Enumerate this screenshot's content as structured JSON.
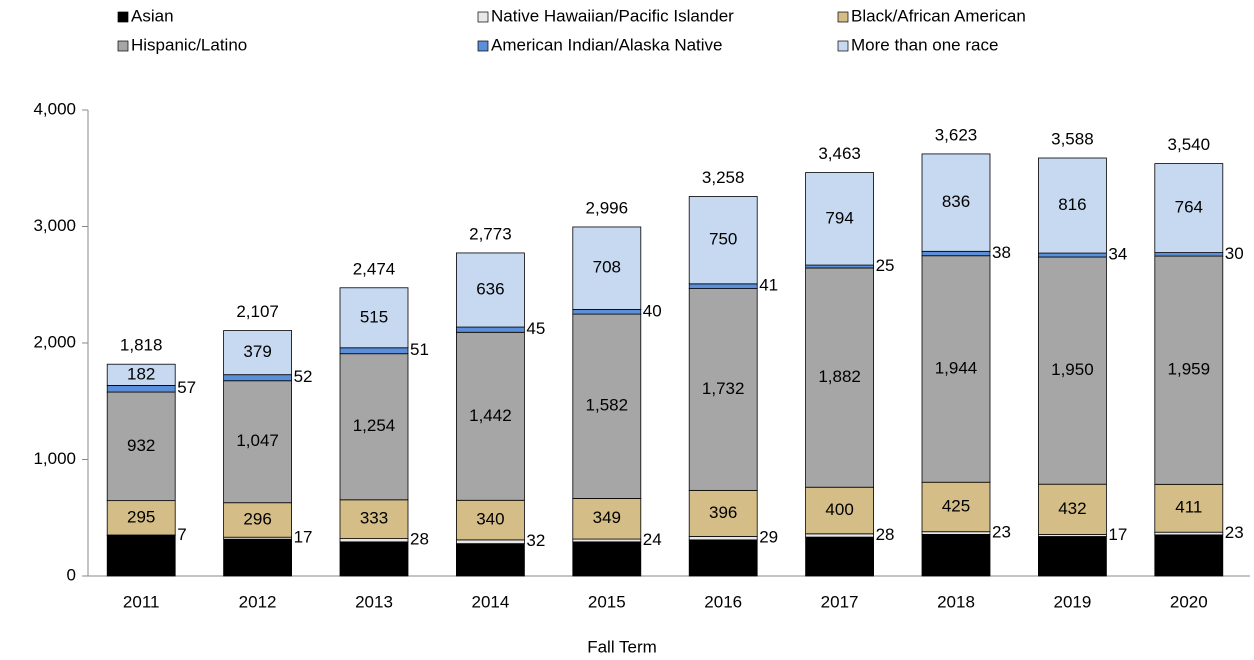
{
  "chart_data": {
    "type": "stacked_bar",
    "x_label": "Fall Term",
    "categories": [
      "2011",
      "2012",
      "2013",
      "2014",
      "2015",
      "2016",
      "2017",
      "2018",
      "2019",
      "2020"
    ],
    "series": [
      {
        "name": "Asian",
        "color": "#000000",
        "values": [
          345,
          316,
          293,
          278,
          293,
          310,
          334,
          357,
          339,
          353
        ]
      },
      {
        "name": "Native Hawaiian/Pacific Islander",
        "color": "#e8e8e8",
        "values": [
          7,
          17,
          28,
          32,
          24,
          29,
          28,
          23,
          17,
          23
        ]
      },
      {
        "name": "Black/African American",
        "color": "#d4bd86",
        "values": [
          295,
          296,
          333,
          340,
          349,
          396,
          400,
          425,
          432,
          411
        ]
      },
      {
        "name": "Hispanic/Latino",
        "color": "#a6a6a6",
        "values": [
          932,
          1047,
          1254,
          1442,
          1582,
          1732,
          1882,
          1944,
          1950,
          1959
        ],
        "value_labels": [
          "932",
          "1,047",
          "1,254",
          "1,442",
          "1,582",
          "1,732",
          "1,882",
          "1,944",
          "1,950",
          "1,959"
        ]
      },
      {
        "name": "American Indian/Alaska Native",
        "color": "#5b8fd9",
        "values": [
          57,
          52,
          51,
          45,
          40,
          41,
          25,
          38,
          34,
          30
        ]
      },
      {
        "name": "More than one race",
        "color": "#c6d9f1",
        "values": [
          182,
          379,
          515,
          636,
          708,
          750,
          794,
          836,
          816,
          764
        ]
      }
    ],
    "totals": {
      "values": [
        1818,
        2107,
        2474,
        2773,
        2996,
        3258,
        3463,
        3623,
        3588,
        3540
      ],
      "value_labels": [
        "1,818",
        "2,107",
        "2,474",
        "2,773",
        "2,996",
        "3,258",
        "3,463",
        "3,623",
        "3,588",
        "3,540"
      ]
    },
    "ylim": [
      0,
      4000
    ],
    "yticks": [
      0,
      {
        "value": 1000,
        "label": "1,000"
      },
      {
        "value": 2000,
        "label": "2,000"
      },
      {
        "value": 3000,
        "label": "3,000"
      },
      {
        "value": 4000,
        "label": "4,000"
      }
    ],
    "legend": "top"
  }
}
